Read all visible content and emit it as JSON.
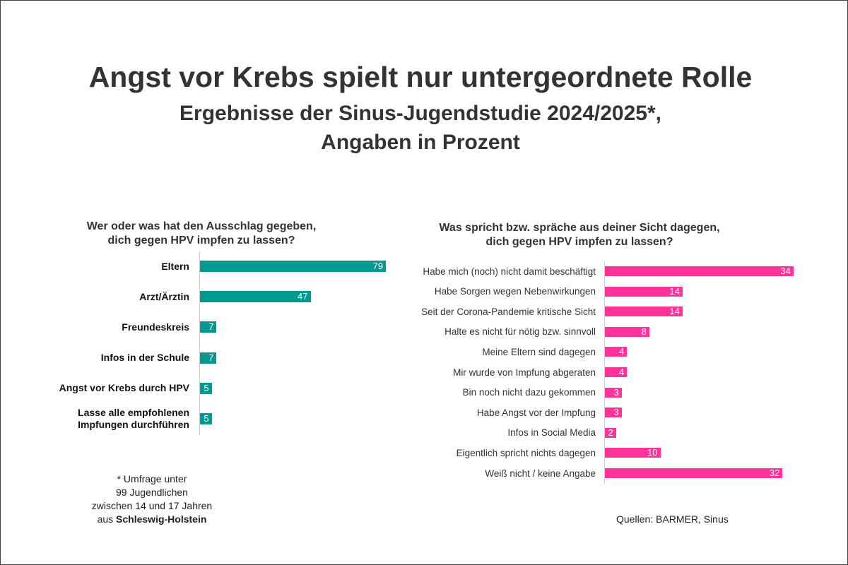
{
  "title": "Angst vor Krebs spielt nur untergeordnete Rolle",
  "subtitle_line1": "Ergebnisse der Sinus-Jugendstudie 2024/2025*,",
  "subtitle_line2": "Angaben in Prozent",
  "colors": {
    "left": "#009990",
    "right": "#ff3399"
  },
  "chart_data": [
    {
      "type": "bar",
      "orientation": "horizontal",
      "title_line1": "Wer oder was hat den Ausschlag gegeben,",
      "title_line2": "dich gegen HPV impfen zu lassen?",
      "categories": [
        "Eltern",
        "Arzt/Ärztin",
        "Freundeskreis",
        "Infos in der Schule",
        "Angst vor Krebs durch HPV",
        "Lasse alle empfohlenen Impfungen durchführen"
      ],
      "values": [
        79,
        47,
        7,
        7,
        5,
        5
      ],
      "xlim": [
        0,
        80
      ]
    },
    {
      "type": "bar",
      "orientation": "horizontal",
      "title_line1": "Was spricht bzw. spräche aus deiner Sicht dagegen,",
      "title_line2": "dich gegen HPV impfen zu lassen?",
      "categories": [
        "Habe mich (noch) nicht damit beschäftigt",
        "Habe Sorgen wegen Nebenwirkungen",
        "Seit der Corona-Pandemie kritische Sicht",
        "Halte es nicht für nötig bzw. sinnvoll",
        "Meine Eltern sind dagegen",
        "Mir wurde von Impfung abgeraten",
        "Bin noch nicht dazu gekommen",
        "Habe Angst vor der Impfung",
        "Infos in Social Media",
        "Eigentlich spricht nichts dagegen",
        "Weiß nicht / keine Angabe"
      ],
      "values": [
        34,
        14,
        14,
        8,
        4,
        4,
        3,
        3,
        2,
        10,
        32
      ],
      "xlim": [
        0,
        35
      ]
    }
  ],
  "footnote": {
    "line1": "*  Umfrage unter",
    "line2": "99 Jugendlichen",
    "line3": "zwischen 14 und 17 Jahren",
    "line4_prefix": "aus ",
    "line4_bold": "Schleswig-Holstein"
  },
  "source": "Quellen: BARMER, Sinus"
}
